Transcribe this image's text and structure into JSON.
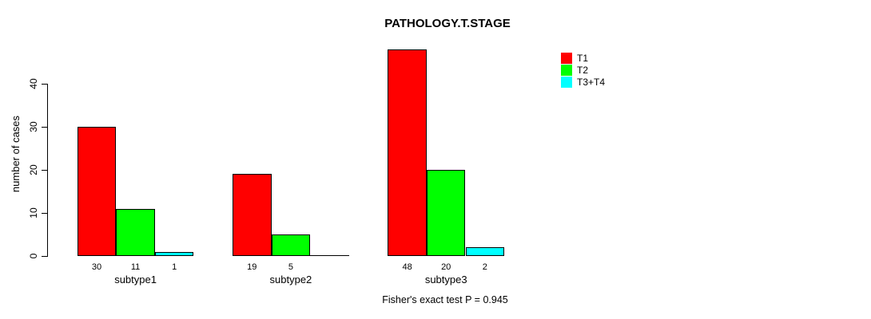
{
  "chart_data": {
    "type": "bar",
    "title": "PATHOLOGY.T.STAGE",
    "ylabel": "number of cases",
    "xlabel": "",
    "categories": [
      "subtype1",
      "subtype2",
      "subtype3"
    ],
    "series": [
      {
        "name": "T1",
        "color": "#ff0000",
        "values": [
          30,
          19,
          48
        ]
      },
      {
        "name": "T2",
        "color": "#00ff00",
        "values": [
          11,
          5,
          20
        ]
      },
      {
        "name": "T3+T4",
        "color": "#00ffff",
        "values": [
          1,
          0,
          2
        ]
      }
    ],
    "bar_value_labels": [
      [
        "30",
        "11",
        "1"
      ],
      [
        "19",
        "5",
        ""
      ],
      [
        "48",
        "20",
        "2"
      ]
    ],
    "y_ticks": [
      0,
      10,
      20,
      30,
      40
    ],
    "ylim": [
      0,
      40
    ],
    "grid": false,
    "legend_position": "top-right",
    "annotation": "Fisher's exact test P = 0.945"
  },
  "colors": {
    "axis": "#000000",
    "bar_border": "#000000",
    "text": "#000000",
    "background": "#ffffff"
  }
}
